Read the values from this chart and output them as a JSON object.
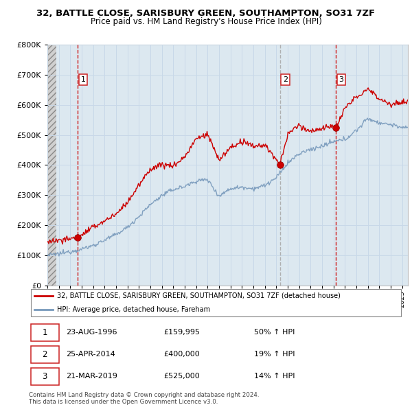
{
  "title_line1": "32, BATTLE CLOSE, SARISBURY GREEN, SOUTHAMPTON, SO31 7ZF",
  "title_line2": "Price paid vs. HM Land Registry's House Price Index (HPI)",
  "legend_line1": "32, BATTLE CLOSE, SARISBURY GREEN, SOUTHAMPTON, SO31 7ZF (detached house)",
  "legend_line2": "HPI: Average price, detached house, Fareham",
  "sale1_date": "23-AUG-1996",
  "sale1_price": "£159,995",
  "sale1_hpi": "50% ↑ HPI",
  "sale1_year": 1996.65,
  "sale1_value": 159995,
  "sale2_date": "25-APR-2014",
  "sale2_price": "£400,000",
  "sale2_hpi": "19% ↑ HPI",
  "sale2_year": 2014.32,
  "sale2_value": 400000,
  "sale3_date": "21-MAR-2019",
  "sale3_price": "£525,000",
  "sale3_hpi": "14% ↑ HPI",
  "sale3_year": 2019.22,
  "sale3_value": 525000,
  "red_color": "#cc0000",
  "blue_color": "#7799bb",
  "grid_color": "#c8d8e8",
  "background_plot": "#dce8f0",
  "xmin": 1994.0,
  "xmax": 2025.5,
  "ymin": 0,
  "ymax": 800000,
  "footnote": "Contains HM Land Registry data © Crown copyright and database right 2024.\nThis data is licensed under the Open Government Licence v3.0."
}
